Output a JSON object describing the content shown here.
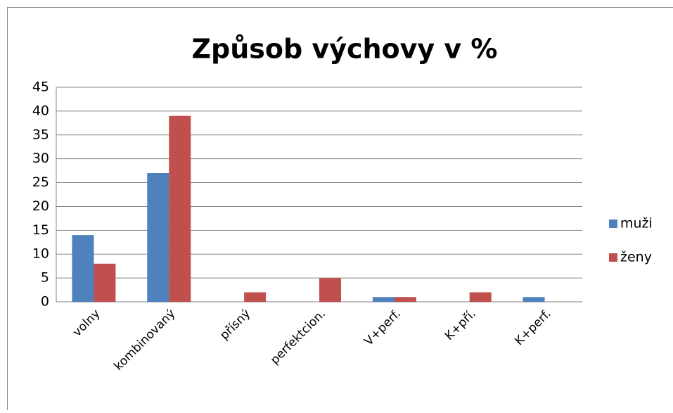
{
  "chart_data": {
    "type": "bar",
    "title": "Způsob výchovy v %",
    "categories": [
      "volny",
      "kombinovaný",
      "přísný",
      "perfektcion.",
      "V+perf.",
      "K+pří.",
      "K+perf."
    ],
    "series": [
      {
        "name": "muži",
        "color": "#4f81bd",
        "values": [
          14,
          27,
          0,
          0,
          1,
          0,
          1
        ]
      },
      {
        "name": "ženy",
        "color": "#c0504d",
        "values": [
          8,
          39,
          2,
          5,
          1,
          2,
          0
        ]
      }
    ],
    "ylim": [
      0,
      45
    ],
    "yticks": [
      0,
      5,
      10,
      15,
      20,
      25,
      30,
      35,
      40,
      45
    ],
    "grid": true,
    "legend": "right"
  }
}
